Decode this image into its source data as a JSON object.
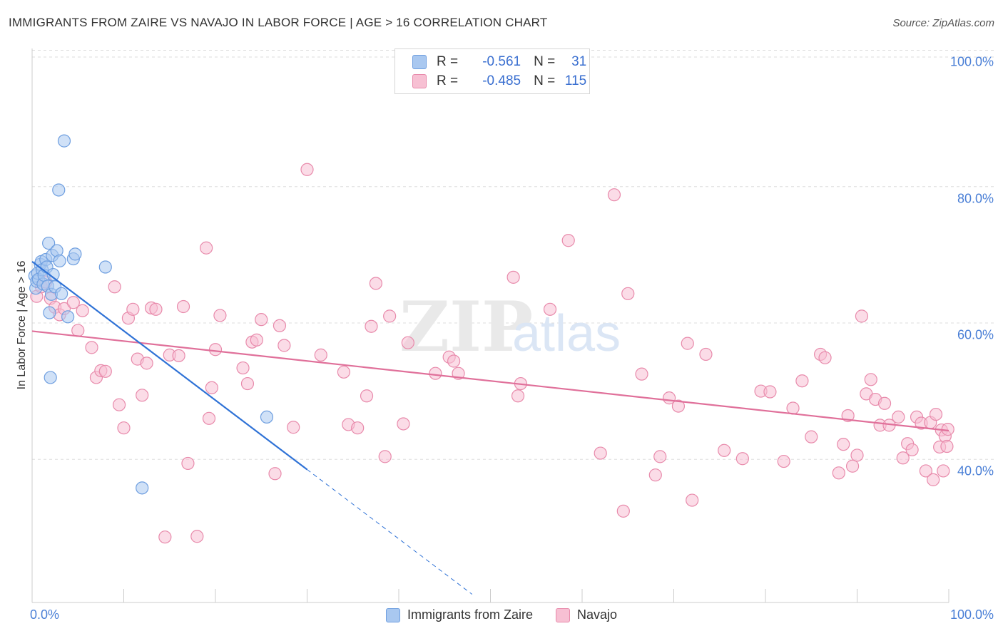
{
  "title": "IMMIGRANTS FROM ZAIRE VS NAVAJO IN LABOR FORCE | AGE > 16 CORRELATION CHART",
  "source": "Source: ZipAtlas.com",
  "watermark": {
    "zip": "ZIP",
    "atlas": "atlas"
  },
  "legend": {
    "rows": [
      {
        "r_label": "R =",
        "r_value": "-0.561",
        "n_label": "N =",
        "n_value": "31",
        "color": "#a9c8f0",
        "border": "#6f9fe0"
      },
      {
        "r_label": "R =",
        "r_value": "-0.485",
        "n_label": "N =",
        "n_value": "115",
        "color": "#f7c0d3",
        "border": "#e88aab"
      }
    ]
  },
  "bottom_legend": [
    "Immigrants from Zaire",
    "Navajo"
  ],
  "colors": {
    "zaire_fill": "#a9c8f0",
    "zaire_stroke": "#6f9fe0",
    "zaire_line": "#2f72d6",
    "navajo_fill": "#f7c0d3",
    "navajo_stroke": "#e88aab",
    "navajo_line": "#e0709a",
    "tick_text": "#4a7fd6",
    "grid": "#dddddd"
  },
  "chart_data": {
    "type": "scatter",
    "title": "IMMIGRANTS FROM ZAIRE VS NAVAJO IN LABOR FORCE | AGE > 16 CORRELATION CHART",
    "xlabel": "",
    "ylabel": "In Labor Force | Age > 16",
    "xlim": [
      0,
      100
    ],
    "ylim": [
      19,
      99
    ],
    "x_tick_labels": [
      "0.0%",
      "100.0%"
    ],
    "y_ticks": [
      40,
      60,
      80,
      100
    ],
    "y_tick_labels": [
      "40.0%",
      "60.0%",
      "80.0%",
      "100.0%"
    ],
    "grid": true,
    "legend_position": "top-center",
    "series": [
      {
        "name": "Immigrants from Zaire",
        "r": -0.561,
        "n": 31,
        "points": [
          [
            0.3,
            66.9
          ],
          [
            0.4,
            65.1
          ],
          [
            0.5,
            66.1
          ],
          [
            0.6,
            67.3
          ],
          [
            0.7,
            66.4
          ],
          [
            0.9,
            68.6
          ],
          [
            1.0,
            69.0
          ],
          [
            1.1,
            67.8
          ],
          [
            1.2,
            65.7
          ],
          [
            1.3,
            67.0
          ],
          [
            1.5,
            69.3
          ],
          [
            1.6,
            68.2
          ],
          [
            1.7,
            65.4
          ],
          [
            1.8,
            71.7
          ],
          [
            1.9,
            61.5
          ],
          [
            2.0,
            52.0
          ],
          [
            2.1,
            64.2
          ],
          [
            2.2,
            69.9
          ],
          [
            2.3,
            67.1
          ],
          [
            2.5,
            65.3
          ],
          [
            2.7,
            70.6
          ],
          [
            2.9,
            79.5
          ],
          [
            3.0,
            69.1
          ],
          [
            3.2,
            64.3
          ],
          [
            3.5,
            86.7
          ],
          [
            3.9,
            60.9
          ],
          [
            4.5,
            69.4
          ],
          [
            4.7,
            70.1
          ],
          [
            8.0,
            68.2
          ],
          [
            12.0,
            35.8
          ],
          [
            25.6,
            46.2
          ]
        ],
        "trend": {
          "x": [
            0.0,
            30.0
          ],
          "y": [
            69.0,
            38.5
          ]
        },
        "trend_extension": {
          "x": [
            30.0,
            48.0
          ],
          "y": [
            38.5,
            20.2
          ]
        }
      },
      {
        "name": "Navajo",
        "r": -0.485,
        "n": 115,
        "points": [
          [
            0.5,
            63.9
          ],
          [
            1.0,
            65.3
          ],
          [
            1.5,
            66.0
          ],
          [
            2.0,
            63.6
          ],
          [
            2.5,
            62.3
          ],
          [
            3.0,
            61.2
          ],
          [
            3.5,
            62.1
          ],
          [
            4.5,
            63.0
          ],
          [
            5.0,
            58.9
          ],
          [
            5.5,
            61.8
          ],
          [
            6.5,
            56.4
          ],
          [
            7.0,
            52.0
          ],
          [
            7.5,
            53.0
          ],
          [
            8.0,
            52.9
          ],
          [
            9.0,
            65.3
          ],
          [
            9.5,
            48.0
          ],
          [
            10.0,
            44.6
          ],
          [
            10.5,
            60.7
          ],
          [
            11.0,
            62.0
          ],
          [
            11.5,
            54.7
          ],
          [
            12.0,
            49.4
          ],
          [
            12.5,
            54.1
          ],
          [
            13.0,
            62.2
          ],
          [
            13.5,
            62.0
          ],
          [
            14.5,
            28.6
          ],
          [
            15.0,
            55.3
          ],
          [
            16.0,
            55.2
          ],
          [
            16.5,
            62.4
          ],
          [
            17.0,
            39.4
          ],
          [
            18.0,
            28.7
          ],
          [
            19.0,
            71.0
          ],
          [
            19.3,
            46.0
          ],
          [
            19.6,
            50.5
          ],
          [
            20.0,
            56.1
          ],
          [
            20.5,
            61.1
          ],
          [
            23.0,
            53.4
          ],
          [
            23.5,
            51.1
          ],
          [
            24.0,
            57.2
          ],
          [
            24.5,
            57.5
          ],
          [
            25.0,
            60.5
          ],
          [
            26.5,
            37.9
          ],
          [
            27.0,
            59.6
          ],
          [
            27.5,
            56.7
          ],
          [
            28.5,
            44.7
          ],
          [
            30.0,
            82.5
          ],
          [
            31.5,
            55.3
          ],
          [
            34.0,
            52.8
          ],
          [
            34.5,
            45.1
          ],
          [
            35.5,
            44.6
          ],
          [
            36.5,
            49.3
          ],
          [
            37.0,
            59.5
          ],
          [
            37.5,
            65.8
          ],
          [
            38.5,
            40.4
          ],
          [
            39.0,
            61.0
          ],
          [
            40.5,
            45.2
          ],
          [
            41.0,
            57.1
          ],
          [
            44.0,
            52.6
          ],
          [
            45.5,
            55.0
          ],
          [
            46.0,
            54.4
          ],
          [
            46.5,
            52.6
          ],
          [
            52.5,
            66.7
          ],
          [
            53.0,
            49.3
          ],
          [
            53.3,
            51.1
          ],
          [
            56.5,
            62.0
          ],
          [
            58.5,
            72.1
          ],
          [
            62.0,
            40.9
          ],
          [
            63.5,
            78.8
          ],
          [
            64.5,
            32.4
          ],
          [
            65.0,
            64.3
          ],
          [
            66.5,
            52.5
          ],
          [
            68.0,
            37.7
          ],
          [
            68.5,
            40.4
          ],
          [
            69.5,
            49.0
          ],
          [
            70.5,
            47.8
          ],
          [
            71.5,
            57.0
          ],
          [
            72.0,
            34.0
          ],
          [
            73.5,
            55.4
          ],
          [
            75.5,
            41.3
          ],
          [
            77.5,
            40.1
          ],
          [
            79.5,
            50.0
          ],
          [
            80.5,
            49.9
          ],
          [
            82.0,
            39.7
          ],
          [
            83.0,
            47.5
          ],
          [
            84.0,
            51.5
          ],
          [
            85.0,
            43.3
          ],
          [
            86.0,
            55.4
          ],
          [
            86.5,
            54.9
          ],
          [
            88.0,
            38.0
          ],
          [
            88.5,
            42.2
          ],
          [
            89.0,
            46.4
          ],
          [
            89.5,
            39.0
          ],
          [
            90.0,
            40.6
          ],
          [
            90.5,
            61.0
          ],
          [
            91.0,
            49.6
          ],
          [
            91.5,
            51.7
          ],
          [
            92.0,
            48.8
          ],
          [
            92.5,
            45.0
          ],
          [
            93.0,
            48.2
          ],
          [
            93.5,
            45.0
          ],
          [
            94.5,
            46.2
          ],
          [
            95.0,
            40.2
          ],
          [
            95.5,
            42.3
          ],
          [
            96.0,
            41.4
          ],
          [
            96.5,
            46.2
          ],
          [
            97.0,
            45.3
          ],
          [
            97.5,
            38.3
          ],
          [
            98.0,
            45.4
          ],
          [
            98.3,
            37.0
          ],
          [
            98.6,
            46.6
          ],
          [
            99.0,
            41.8
          ],
          [
            99.2,
            44.3
          ],
          [
            99.4,
            38.3
          ],
          [
            99.6,
            43.4
          ],
          [
            99.8,
            41.9
          ],
          [
            99.9,
            44.4
          ]
        ],
        "trend": {
          "x": [
            0.0,
            100.0
          ],
          "y": [
            58.8,
            44.2
          ]
        }
      }
    ]
  }
}
